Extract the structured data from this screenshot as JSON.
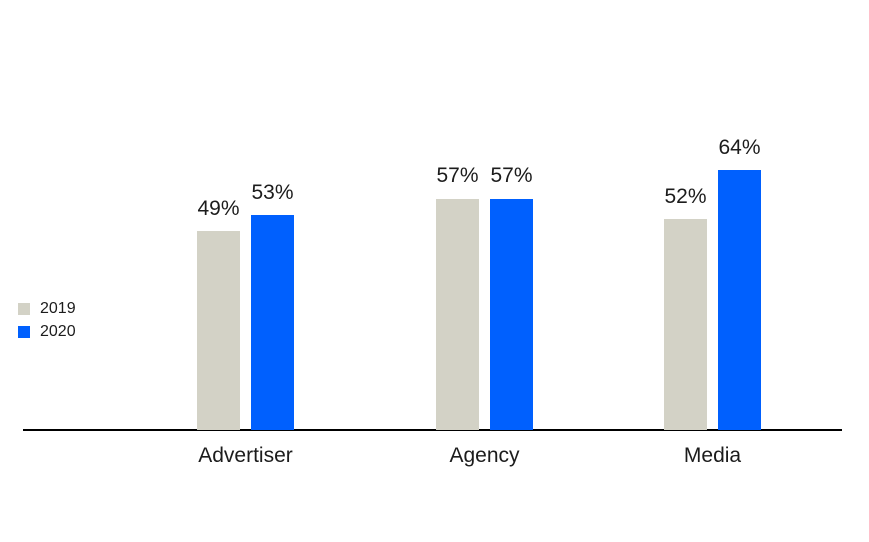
{
  "chart_data": {
    "type": "bar",
    "title": "",
    "categories": [
      "Advertiser",
      "Agency",
      "Media"
    ],
    "series": [
      {
        "name": "2019",
        "color": "#d3d2c6",
        "values": [
          49,
          57,
          52
        ],
        "labels": [
          "49%",
          "57%",
          "52%"
        ]
      },
      {
        "name": "2020",
        "color": "#0060fe",
        "values": [
          53,
          57,
          64
        ],
        "labels": [
          "53%",
          "57%",
          "64%"
        ]
      }
    ],
    "value_suffix": "%",
    "xlabel": "",
    "ylabel": "",
    "ylim": [
      0,
      100
    ],
    "grid": false,
    "y_axis_visible": false,
    "legend_position": "middle-left",
    "axis_line_color": "#000000",
    "text_color": "#1c1c1c",
    "background_color": "#ffffff"
  }
}
